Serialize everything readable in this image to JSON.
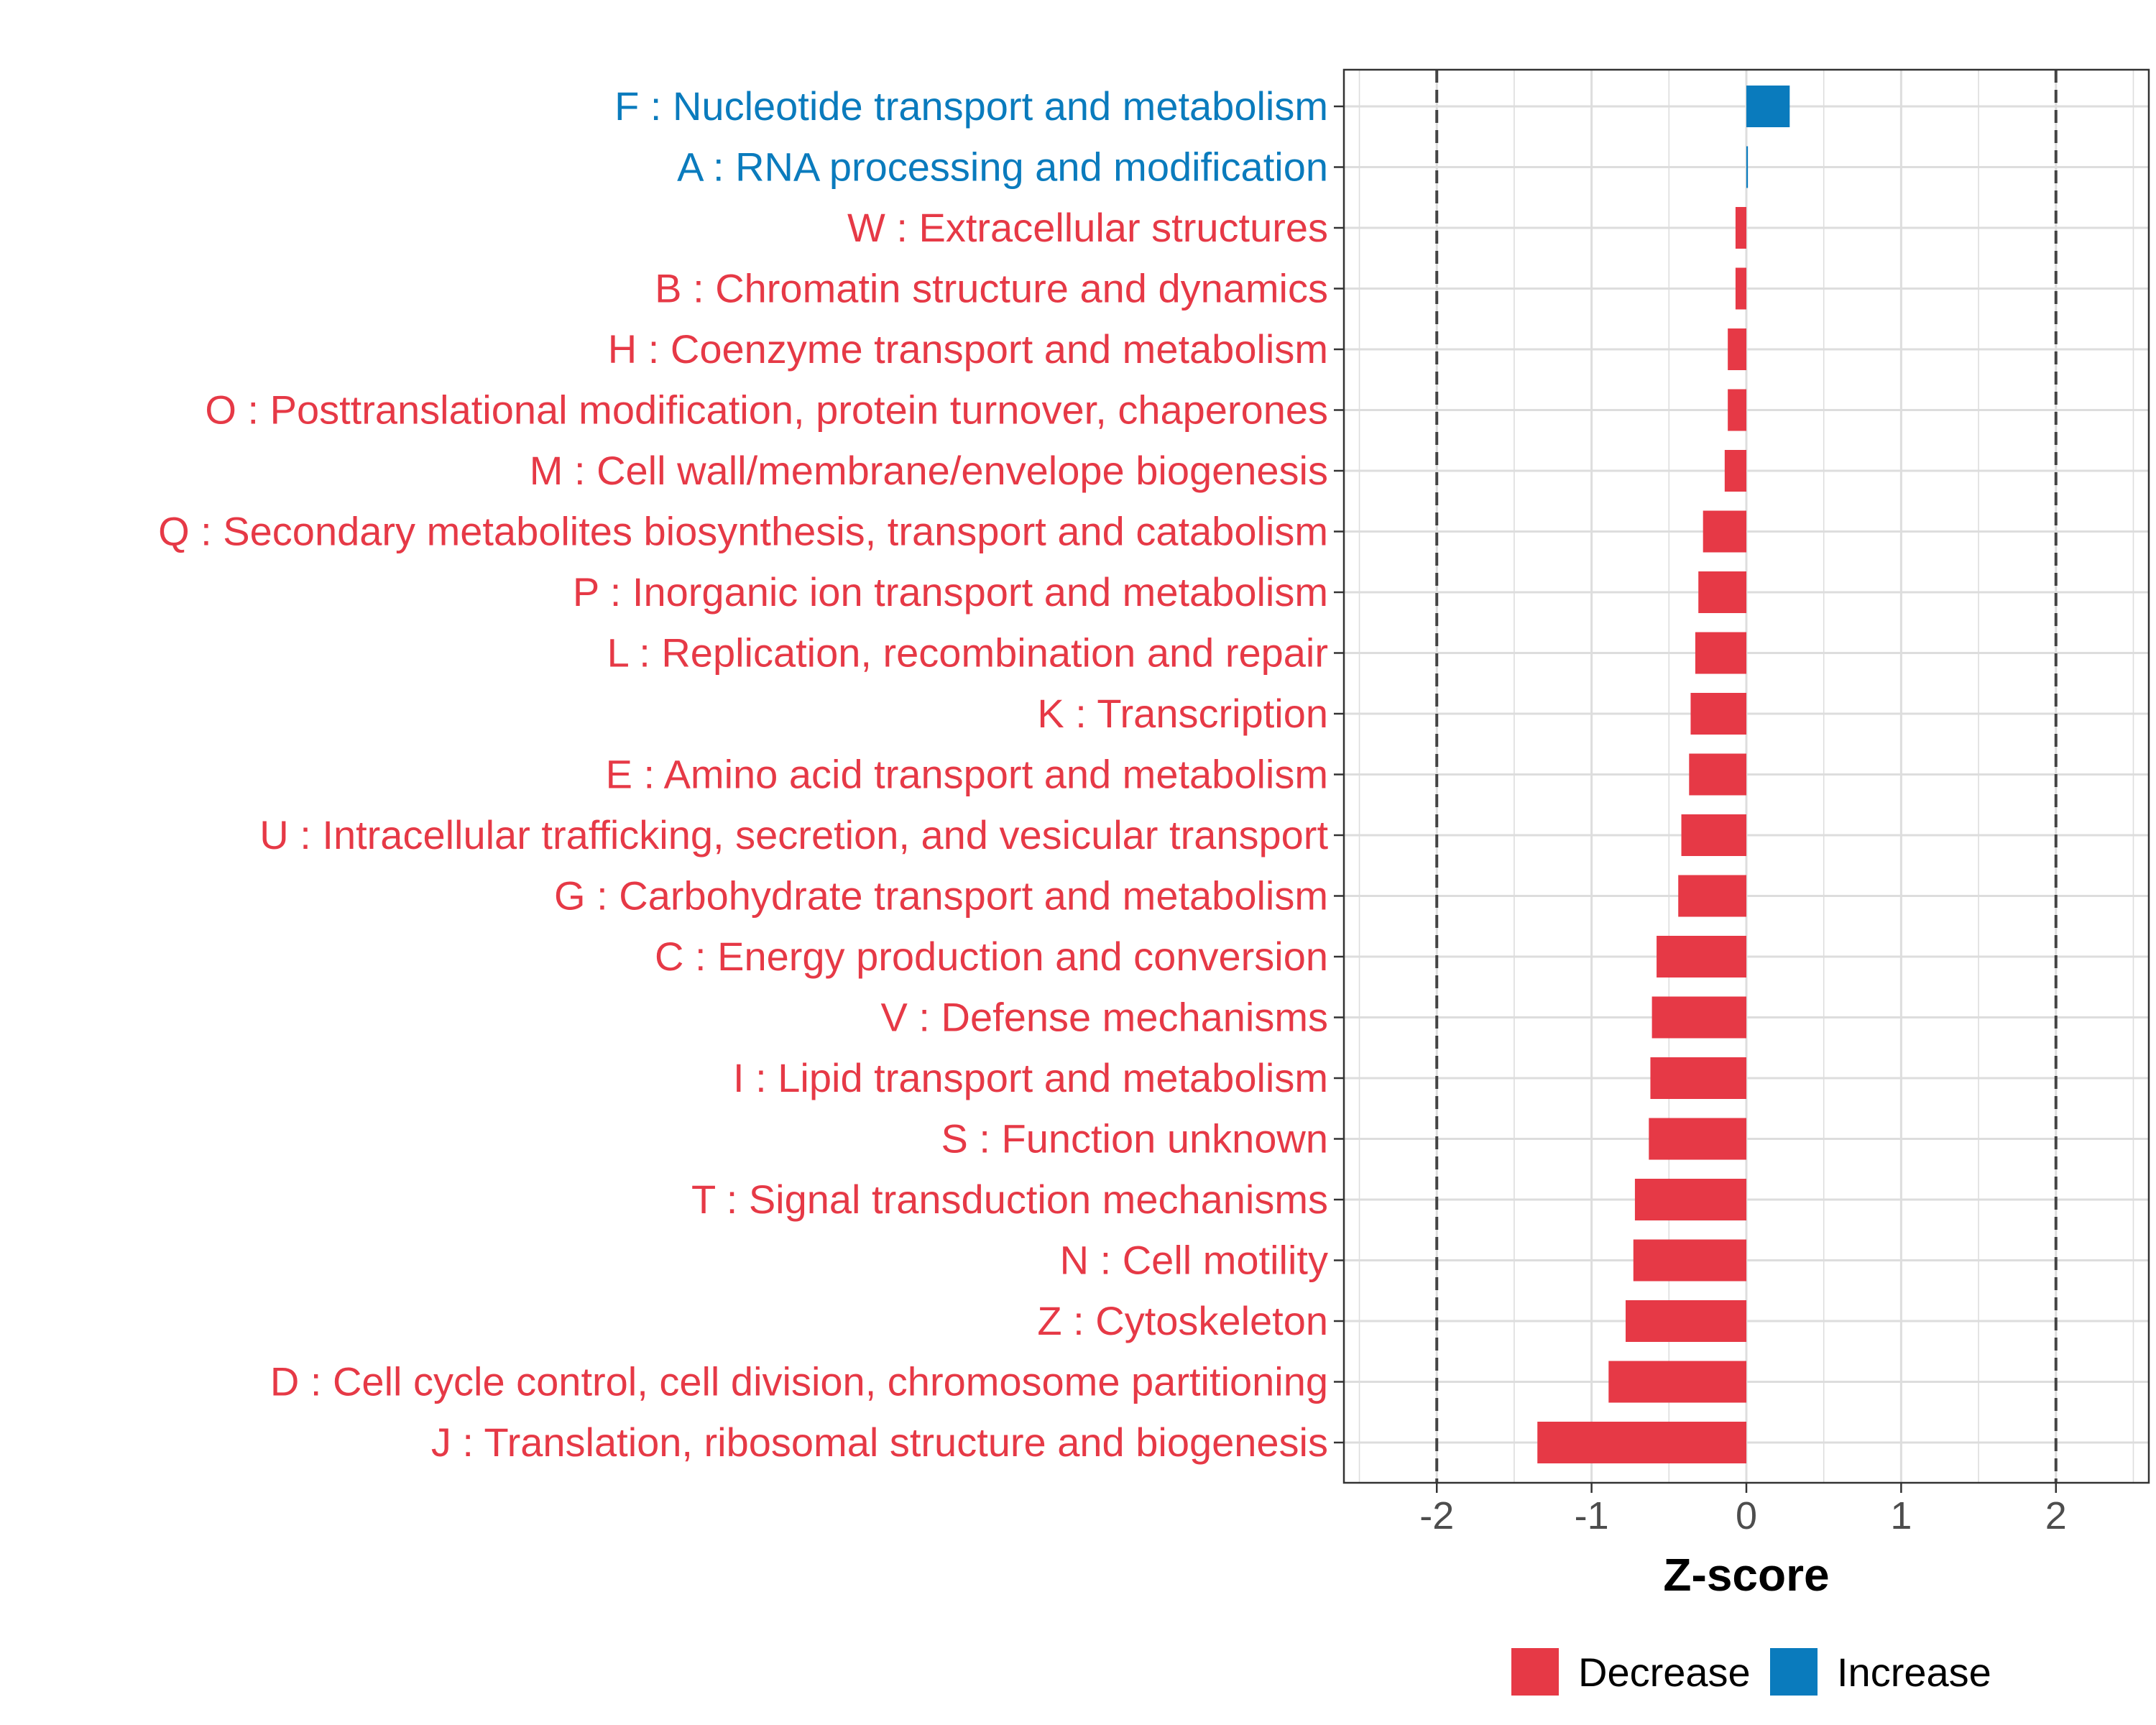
{
  "chart_data": {
    "type": "bar",
    "orientation": "horizontal",
    "xlabel": "Z-score",
    "xlim": [
      -2.6,
      2.6
    ],
    "xticks": [
      -2,
      -1,
      0,
      1,
      2
    ],
    "xtick_labels": [
      "-2",
      "-1",
      "0",
      "1",
      "2"
    ],
    "reference_lines": [
      -2,
      2
    ],
    "grid": true,
    "colors": {
      "Decrease": "#E63946",
      "Increase": "#0A7BBD"
    },
    "legend": {
      "placement": "bottom",
      "entries": [
        "Decrease",
        "Increase"
      ]
    },
    "categories": [
      "F : Nucleotide transport and metabolism",
      "A : RNA processing and modification",
      "W : Extracellular structures",
      "B : Chromatin structure and dynamics",
      "H : Coenzyme transport and metabolism",
      "O : Posttranslational modification, protein turnover, chaperones",
      "M : Cell wall/membrane/envelope biogenesis",
      "Q : Secondary metabolites biosynthesis, transport and catabolism",
      "P : Inorganic ion transport and metabolism",
      "L : Replication, recombination and repair",
      "K : Transcription",
      "E : Amino acid transport and metabolism",
      "U : Intracellular trafficking, secretion, and vesicular transport",
      "G : Carbohydrate transport and metabolism",
      "C : Energy production and conversion",
      "V : Defense mechanisms",
      "I : Lipid transport and metabolism",
      "S : Function unknown",
      "T : Signal transduction mechanisms",
      "N : Cell motility",
      "Z : Cytoskeleton",
      "D : Cell cycle control, cell division, chromosome partitioning",
      "J : Translation, ribosomal structure and biogenesis"
    ],
    "values": [
      0.28,
      0.01,
      -0.07,
      -0.07,
      -0.12,
      -0.12,
      -0.14,
      -0.28,
      -0.31,
      -0.33,
      -0.36,
      -0.37,
      -0.42,
      -0.44,
      -0.58,
      -0.61,
      -0.62,
      -0.63,
      -0.72,
      -0.73,
      -0.78,
      -0.89,
      -1.35
    ],
    "groups": [
      "Increase",
      "Increase",
      "Decrease",
      "Decrease",
      "Decrease",
      "Decrease",
      "Decrease",
      "Decrease",
      "Decrease",
      "Decrease",
      "Decrease",
      "Decrease",
      "Decrease",
      "Decrease",
      "Decrease",
      "Decrease",
      "Decrease",
      "Decrease",
      "Decrease",
      "Decrease",
      "Decrease",
      "Decrease",
      "Decrease"
    ]
  }
}
